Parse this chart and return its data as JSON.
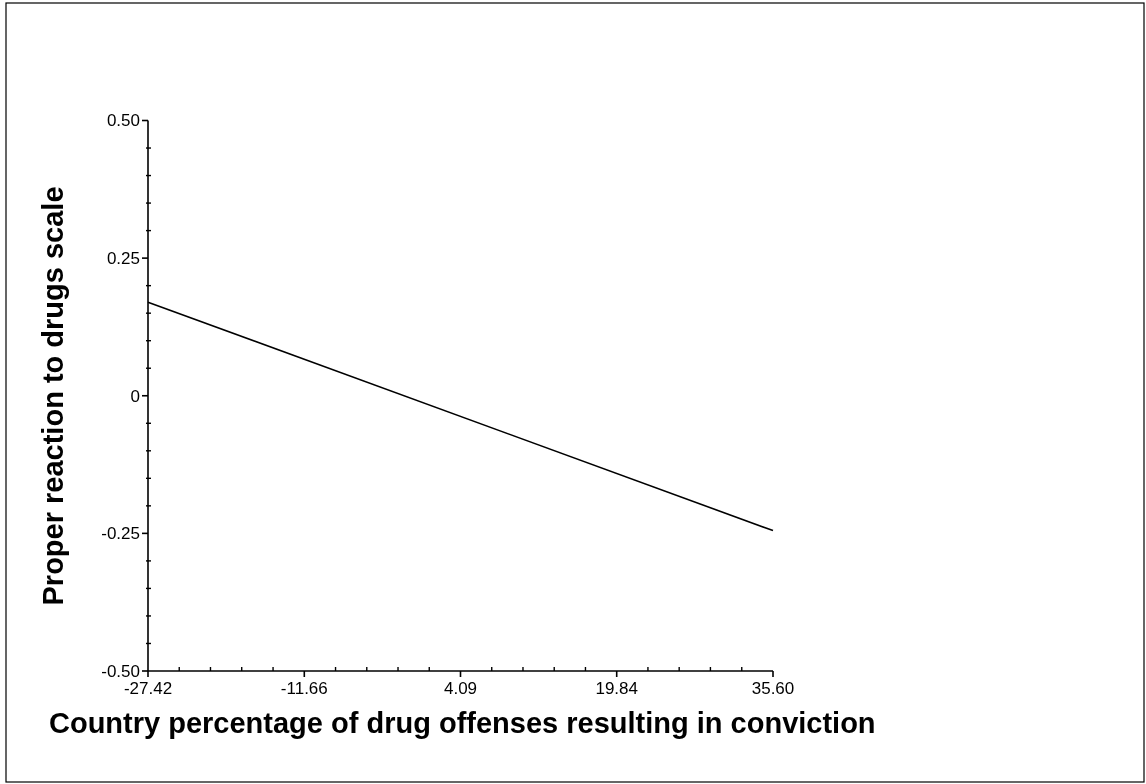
{
  "chart_data": {
    "type": "line",
    "xlabel": "Country percentage of drug offenses resulting in conviction",
    "ylabel": "Proper reaction to drugs scale",
    "series": [
      {
        "x": [
          -27.42,
          35.6
        ],
        "values": [
          0.17,
          -0.245
        ],
        "color": "#000000"
      }
    ],
    "xlim": [
      -27.42,
      35.6
    ],
    "xticks": [
      -27.42,
      {
        "value": -24.27,
        "label": null
      },
      {
        "value": -21.12,
        "label": null
      },
      {
        "value": -17.97,
        "label": null
      },
      {
        "value": -14.81,
        "label": null
      },
      -11.66,
      {
        "value": -8.51,
        "label": null
      },
      {
        "value": -5.36,
        "label": null
      },
      {
        "value": -2.21,
        "label": null
      },
      {
        "value": 0.94,
        "label": null
      },
      4.09,
      {
        "value": 7.24,
        "label": null
      },
      {
        "value": 10.39,
        "label": null
      },
      {
        "value": 13.54,
        "label": null
      },
      {
        "value": 16.69,
        "label": null
      },
      19.84,
      {
        "value": 22.99,
        "label": null
      },
      {
        "value": 26.14,
        "label": null
      },
      {
        "value": 29.29,
        "label": null
      },
      {
        "value": 32.45,
        "label": null
      },
      {
        "value": 35.6,
        "label": "35.60"
      }
    ],
    "ylim": [
      -0.5,
      0.5
    ],
    "yticks": [
      {
        "value": -0.5,
        "label": "-0.50"
      },
      {
        "value": -0.45,
        "label": null
      },
      {
        "value": -0.4,
        "label": null
      },
      {
        "value": -0.35,
        "label": null
      },
      {
        "value": -0.3,
        "label": null
      },
      -0.25,
      {
        "value": -0.2,
        "label": null
      },
      {
        "value": -0.15,
        "label": null
      },
      {
        "value": -0.1,
        "label": null
      },
      {
        "value": -0.05,
        "label": null
      },
      0,
      {
        "value": 0.05,
        "label": null
      },
      {
        "value": 0.1,
        "label": null
      },
      {
        "value": 0.15,
        "label": null
      },
      {
        "value": 0.2,
        "label": null
      },
      0.25,
      {
        "value": 0.3,
        "label": null
      },
      {
        "value": 0.35,
        "label": null
      },
      {
        "value": 0.4,
        "label": null
      },
      {
        "value": 0.45,
        "label": null
      },
      {
        "value": 0.5,
        "label": "0.50"
      }
    ],
    "line_style": "solid"
  }
}
